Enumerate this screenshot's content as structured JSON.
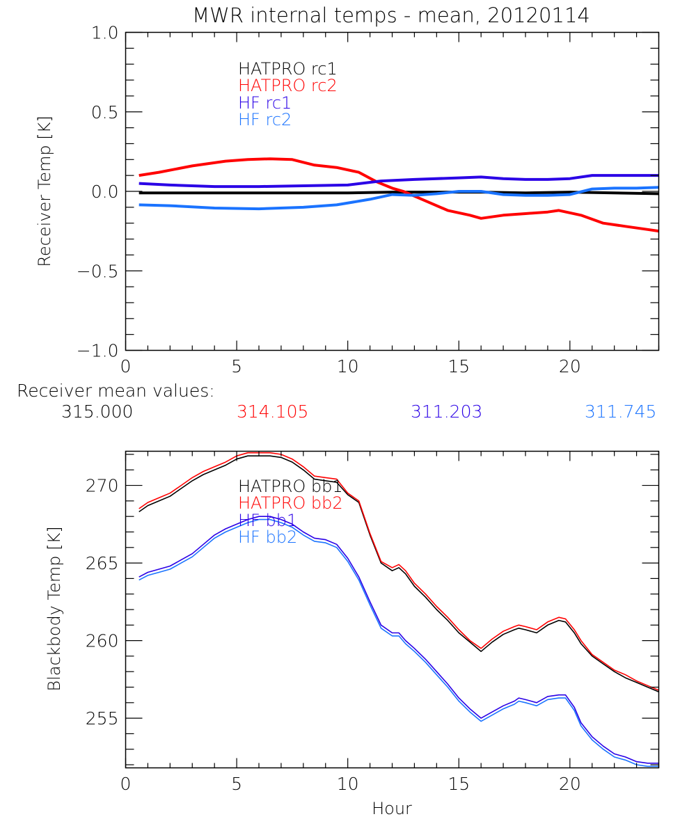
{
  "chart_data": [
    {
      "type": "line",
      "title": "MWR internal temps - mean, 20120114",
      "xlabel": "",
      "ylabel": "Receiver Temp [K]",
      "xlim": [
        0,
        24
      ],
      "ylim": [
        -1.0,
        1.0
      ],
      "x_ticks": [
        "0",
        "5",
        "10",
        "15",
        "20"
      ],
      "y_ticks": [
        "-1.0",
        "-0.5",
        "0.0",
        "0.5",
        "1.0"
      ],
      "grid": false,
      "legend_position": "top-left (inside)",
      "series": [
        {
          "name": "HATPRO rc1",
          "color": "#000000",
          "x": [
            0.6,
            2,
            4,
            6,
            8,
            10,
            12,
            14,
            16,
            18,
            20,
            22,
            24
          ],
          "y": [
            -0.01,
            -0.01,
            -0.01,
            -0.01,
            -0.01,
            -0.01,
            -0.005,
            -0.005,
            -0.005,
            -0.01,
            -0.005,
            -0.01,
            -0.015
          ]
        },
        {
          "name": "HATPRO rc2",
          "color": "#ff0000",
          "x": [
            0.6,
            1.5,
            3,
            4.5,
            5.5,
            6.5,
            7.5,
            8.5,
            9.5,
            10.5,
            11.3,
            12,
            12.5,
            13.5,
            14.5,
            15.5,
            16,
            17,
            18,
            19,
            19.5,
            20.5,
            21.5,
            22.5,
            23.5,
            24
          ],
          "y": [
            0.1,
            0.12,
            0.16,
            0.19,
            0.2,
            0.205,
            0.2,
            0.165,
            0.15,
            0.12,
            0.06,
            0.02,
            0.0,
            -0.06,
            -0.12,
            -0.15,
            -0.17,
            -0.15,
            -0.14,
            -0.13,
            -0.12,
            -0.15,
            -0.2,
            -0.22,
            -0.24,
            -0.25
          ]
        },
        {
          "name": "HF rc1",
          "color": "#2a00e6",
          "x": [
            0.6,
            2,
            4,
            6,
            8,
            10,
            11.5,
            13,
            15,
            16,
            17,
            18,
            19,
            20,
            21,
            22,
            23,
            24
          ],
          "y": [
            0.05,
            0.04,
            0.03,
            0.03,
            0.035,
            0.04,
            0.065,
            0.075,
            0.085,
            0.09,
            0.08,
            0.075,
            0.075,
            0.08,
            0.1,
            0.1,
            0.1,
            0.1
          ]
        },
        {
          "name": "HF rc2",
          "color": "#1a73ff",
          "x": [
            0.6,
            2,
            4,
            6,
            8,
            9.5,
            11,
            12,
            13,
            14,
            15,
            16,
            17,
            18,
            19,
            20,
            21,
            22,
            23,
            24
          ],
          "y": [
            -0.085,
            -0.09,
            -0.105,
            -0.11,
            -0.1,
            -0.085,
            -0.05,
            -0.02,
            -0.025,
            -0.015,
            0.0,
            0.0,
            -0.02,
            -0.025,
            -0.025,
            -0.02,
            0.015,
            0.02,
            0.02,
            0.025
          ]
        }
      ],
      "annotations": [
        {
          "label": "Receiver mean values:"
        },
        {
          "value": "315.000",
          "color": "#000000"
        },
        {
          "value": "314.105",
          "color": "#ff0000"
        },
        {
          "value": "311.203",
          "color": "#2a00e6"
        },
        {
          "value": "311.745",
          "color": "#1a73ff"
        }
      ]
    },
    {
      "type": "line",
      "title": "",
      "xlabel": "Hour",
      "ylabel": "Blackbody Temp [K]",
      "xlim": [
        0,
        24
      ],
      "ylim": [
        251.8,
        272.2
      ],
      "x_ticks": [
        "0",
        "5",
        "10",
        "15",
        "20"
      ],
      "y_ticks": [
        "255",
        "260",
        "265",
        "270"
      ],
      "grid": false,
      "legend_position": "top-left (inside)",
      "series": [
        {
          "name": "HATPRO bb1",
          "color": "#000000",
          "x": [
            0.6,
            1,
            1.5,
            2,
            2.5,
            3,
            3.5,
            4,
            4.5,
            5,
            5.5,
            6,
            6.5,
            7,
            7.5,
            8,
            8.5,
            9,
            9.5,
            10,
            10.5,
            11,
            11.5,
            12,
            12.3,
            12.6,
            13,
            13.5,
            14,
            14.5,
            15,
            15.5,
            16,
            16.5,
            17,
            17.5,
            17.7,
            18,
            18.5,
            19,
            19.5,
            19.8,
            20.2,
            20.5,
            21,
            21.5,
            22,
            22.5,
            23,
            23.5,
            24
          ],
          "y": [
            268.3,
            268.7,
            269.0,
            269.3,
            269.8,
            270.3,
            270.7,
            271.0,
            271.3,
            271.7,
            271.9,
            271.9,
            271.9,
            271.8,
            271.5,
            271.0,
            270.4,
            270.3,
            270.2,
            269.4,
            268.9,
            266.8,
            265.0,
            264.5,
            264.7,
            264.3,
            263.5,
            262.8,
            262.0,
            261.3,
            260.5,
            259.9,
            259.3,
            259.9,
            260.4,
            260.7,
            260.8,
            260.7,
            260.5,
            261.0,
            261.3,
            261.2,
            260.5,
            259.8,
            259.0,
            258.5,
            258.0,
            257.6,
            257.3,
            257.0,
            256.7
          ]
        },
        {
          "name": "HATPRO bb2",
          "color": "#ff0000",
          "x": [
            0.6,
            1,
            1.5,
            2,
            2.5,
            3,
            3.5,
            4,
            4.5,
            5,
            5.5,
            6,
            6.5,
            7,
            7.5,
            8,
            8.5,
            9,
            9.5,
            10,
            10.5,
            11,
            11.5,
            12,
            12.3,
            12.6,
            13,
            13.5,
            14,
            14.5,
            15,
            15.5,
            16,
            16.5,
            17,
            17.5,
            17.7,
            18,
            18.5,
            19,
            19.5,
            19.8,
            20.2,
            20.5,
            21,
            21.5,
            22,
            22.5,
            23,
            23.5,
            24
          ],
          "y": [
            268.5,
            268.9,
            269.2,
            269.5,
            270.0,
            270.5,
            270.9,
            271.2,
            271.5,
            271.9,
            272.1,
            272.1,
            272.1,
            272.0,
            271.7,
            271.2,
            270.6,
            270.5,
            270.4,
            269.5,
            269.0,
            266.9,
            265.1,
            264.7,
            264.9,
            264.5,
            263.7,
            263.0,
            262.2,
            261.5,
            260.7,
            260.0,
            259.5,
            260.1,
            260.6,
            260.9,
            261.0,
            260.9,
            260.7,
            261.2,
            261.5,
            261.4,
            260.7,
            260.0,
            259.1,
            258.6,
            258.1,
            257.8,
            257.4,
            257.1,
            256.8
          ]
        },
        {
          "name": "HF bb1",
          "color": "#2a00e6",
          "x": [
            0.6,
            1,
            1.5,
            2,
            2.5,
            3,
            3.5,
            4,
            4.5,
            5,
            5.5,
            6,
            6.5,
            7,
            7.5,
            8,
            8.5,
            9,
            9.5,
            10,
            10.5,
            11,
            11.5,
            12,
            12.3,
            12.6,
            13,
            13.5,
            14,
            14.5,
            15,
            15.5,
            16,
            16.5,
            17,
            17.5,
            17.7,
            18,
            18.5,
            19,
            19.5,
            19.8,
            20.2,
            20.5,
            21,
            21.5,
            22,
            22.5,
            23,
            23.5,
            24
          ],
          "y": [
            264.1,
            264.4,
            264.6,
            264.8,
            265.2,
            265.6,
            266.2,
            266.8,
            267.2,
            267.5,
            267.8,
            268.0,
            268.0,
            267.8,
            267.5,
            267.0,
            266.6,
            266.5,
            266.2,
            265.3,
            264.1,
            262.5,
            261.0,
            260.5,
            260.5,
            260.0,
            259.5,
            258.8,
            258.0,
            257.2,
            256.3,
            255.6,
            255.0,
            255.4,
            255.8,
            256.1,
            256.3,
            256.2,
            256.0,
            256.4,
            256.5,
            256.5,
            255.7,
            254.7,
            253.8,
            253.2,
            252.7,
            252.5,
            252.2,
            252.1,
            252.1
          ]
        },
        {
          "name": "HF bb2",
          "color": "#1a73ff",
          "x": [
            0.6,
            1,
            1.5,
            2,
            2.5,
            3,
            3.5,
            4,
            4.5,
            5,
            5.5,
            6,
            6.5,
            7,
            7.5,
            8,
            8.5,
            9,
            9.5,
            10,
            10.5,
            11,
            11.5,
            12,
            12.3,
            12.6,
            13,
            13.5,
            14,
            14.5,
            15,
            15.5,
            16,
            16.5,
            17,
            17.5,
            17.7,
            18,
            18.5,
            19,
            19.5,
            19.8,
            20.2,
            20.5,
            21,
            21.5,
            22,
            22.5,
            23,
            23.5,
            24
          ],
          "y": [
            263.9,
            264.2,
            264.4,
            264.6,
            265.0,
            265.4,
            266.0,
            266.6,
            267.0,
            267.3,
            267.6,
            267.8,
            267.8,
            267.6,
            267.3,
            266.8,
            266.4,
            266.3,
            266.0,
            265.1,
            263.9,
            262.3,
            260.8,
            260.3,
            260.3,
            259.8,
            259.3,
            258.6,
            257.8,
            257.0,
            256.1,
            255.4,
            254.8,
            255.2,
            255.6,
            255.9,
            256.1,
            256.0,
            255.8,
            256.2,
            256.3,
            256.3,
            255.5,
            254.5,
            253.6,
            253.0,
            252.5,
            252.3,
            252.0,
            251.9,
            251.9
          ]
        }
      ]
    }
  ]
}
